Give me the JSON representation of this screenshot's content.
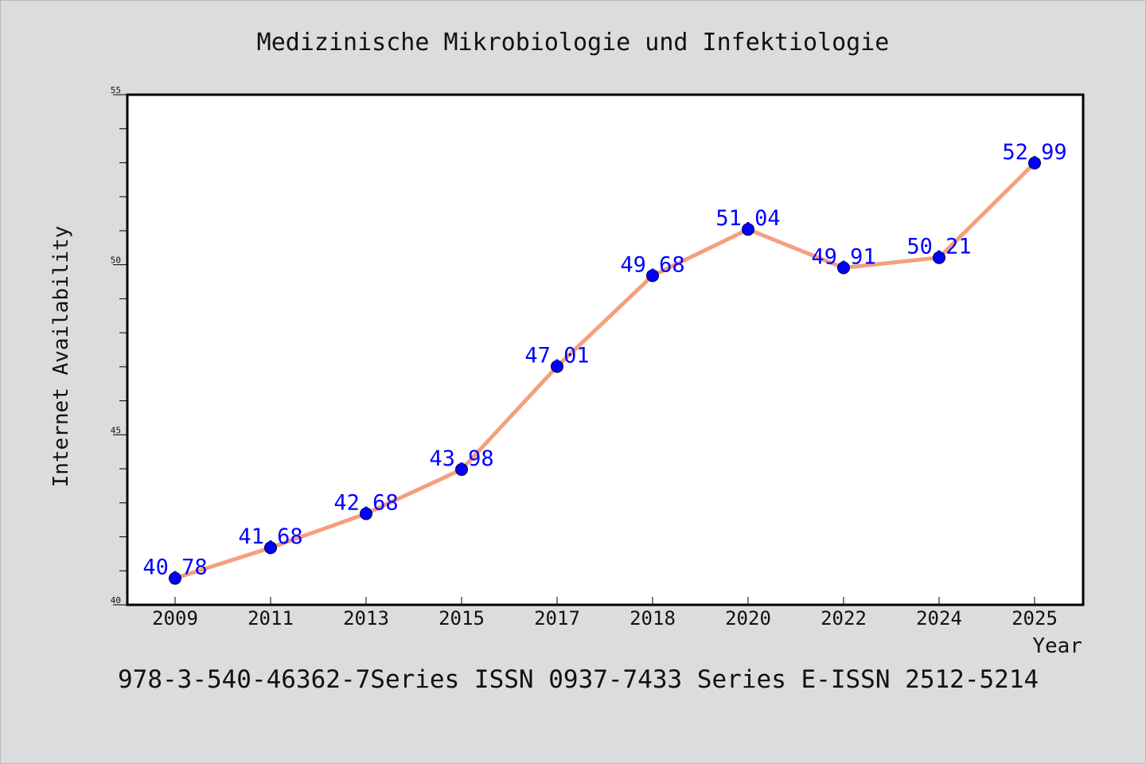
{
  "chart_data": {
    "type": "line",
    "title": "Medizinische Mikrobiologie und Infektiologie",
    "xlabel": "Year",
    "ylabel": "Internet Availability",
    "categories": [
      "2009",
      "2011",
      "2013",
      "2015",
      "2017",
      "2018",
      "2020",
      "2022",
      "2024",
      "2025"
    ],
    "series": [
      {
        "values": [
          40.78,
          41.68,
          42.68,
          43.98,
          47.01,
          49.68,
          51.04,
          49.91,
          50.21,
          52.99
        ],
        "data_labels": [
          "40.78",
          "41.68",
          "42.68",
          "43.98",
          "47.01",
          "49.68",
          "51.04",
          "49.91",
          "50.21",
          "52.99"
        ],
        "line_color": "#f4a07e",
        "marker_color": "#0000ff"
      }
    ],
    "ylim": [
      40,
      55
    ],
    "yticks": [
      "40",
      "45",
      "50",
      "55"
    ],
    "grid": false,
    "legend": "none"
  },
  "footer": "978-3-540-46362-7Series ISSN 0937-7433 Series E-ISSN 2512-5214",
  "colors": {
    "background": "#dcdcdc",
    "plot_background": "#ffffff",
    "data_label": "#0000ff"
  }
}
